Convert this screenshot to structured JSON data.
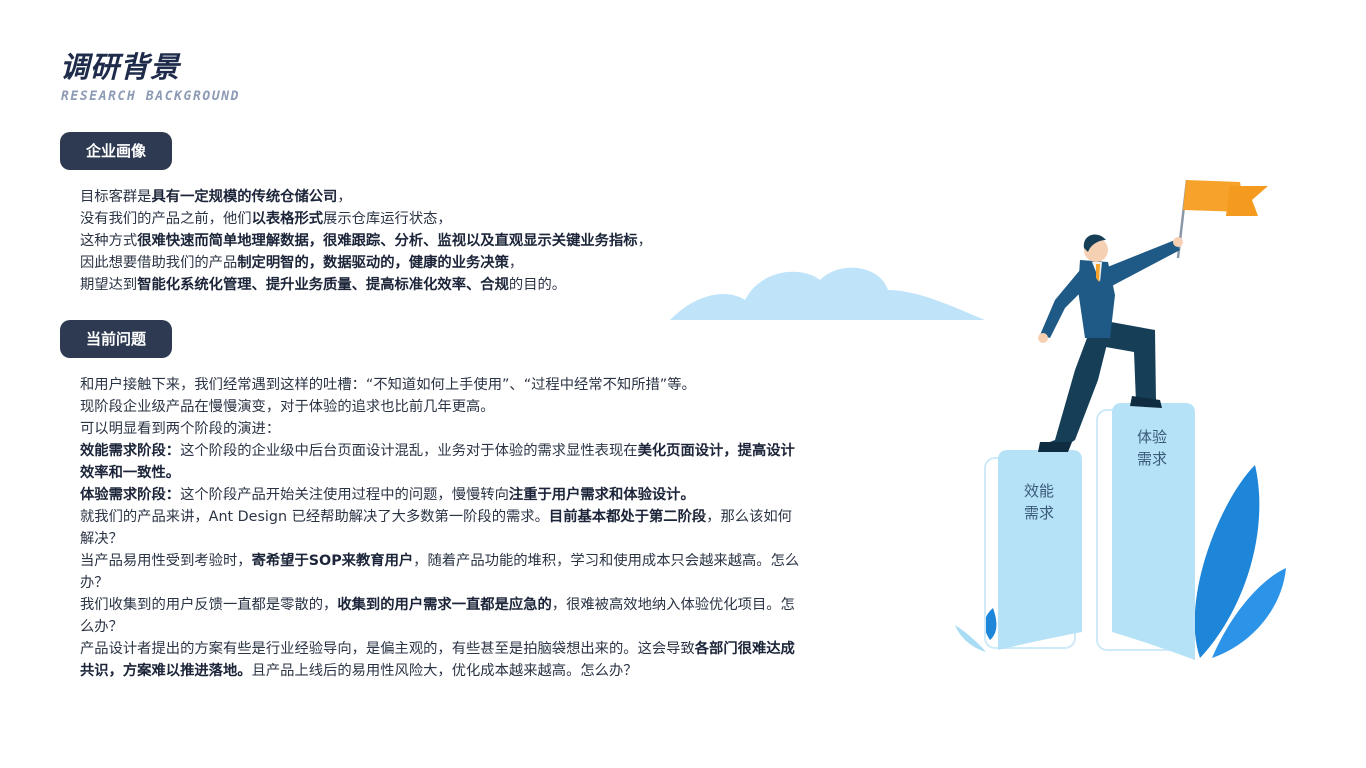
{
  "header": {
    "title": "调研背景",
    "subtitle": "RESEARCH BACKGROUND"
  },
  "section1": {
    "label": "企业画像",
    "lines": [
      [
        {
          "t": "目标客群是",
          "b": false
        },
        {
          "t": "具有一定规模的传统仓储公司",
          "b": true
        },
        {
          "t": "，",
          "b": false
        }
      ],
      [
        {
          "t": "没有我们的产品之前，他们",
          "b": false
        },
        {
          "t": "以表格形式",
          "b": true
        },
        {
          "t": "展示仓库运行状态，",
          "b": false
        }
      ],
      [
        {
          "t": "这种方式",
          "b": false
        },
        {
          "t": "很难快速而简单地理解数据，很难跟踪、分析、监视以及直观显示关键业务指标",
          "b": true
        },
        {
          "t": "，",
          "b": false
        }
      ],
      [
        {
          "t": "因此想要借助我们的产品",
          "b": false
        },
        {
          "t": "制定明智的，数据驱动的，健康的业务决策",
          "b": true
        },
        {
          "t": "，",
          "b": false
        }
      ],
      [
        {
          "t": "期望达到",
          "b": false
        },
        {
          "t": "智能化系统化管理、提升业务质量、提高标准化效率、合规",
          "b": true
        },
        {
          "t": "的目的。",
          "b": false
        }
      ]
    ]
  },
  "section2": {
    "label": "当前问题",
    "paragraphs": [
      [
        {
          "t": "和用户接触下来，我们经常遇到这样的吐槽：“不知道如何上手使用”、“过程中经常不知所措”等。",
          "b": false
        }
      ],
      [
        {
          "t": "现阶段企业级产品在慢慢演变，对于体验的追求也比前几年更高。",
          "b": false
        }
      ],
      [
        {
          "t": "可以明显看到两个阶段的演进：",
          "b": false
        }
      ],
      [
        {
          "t": "效能需求阶段：",
          "b": true
        },
        {
          "t": "这个阶段的企业级中后台页面设计混乱，业务对于体验的需求显性表现在",
          "b": false
        },
        {
          "t": "美化页面设计，提高设计效率和一致性。",
          "b": true
        }
      ],
      [
        {
          "t": "体验需求阶段：",
          "b": true
        },
        {
          "t": "这个阶段产品开始关注使用过程中的问题，慢慢转向",
          "b": false
        },
        {
          "t": "注重于用户需求和体验设计。",
          "b": true
        }
      ],
      [
        {
          "t": "就我们的产品来讲，Ant Design 已经帮助解决了大多数第一阶段的需求。",
          "b": false
        },
        {
          "t": "目前基本都处于第二阶段",
          "b": true
        },
        {
          "t": "，那么该如何解决？",
          "b": false
        }
      ],
      [
        {
          "t": "当产品易用性受到考验时，",
          "b": false
        },
        {
          "t": "寄希望于SOP来教育用户",
          "b": true
        },
        {
          "t": "，随着产品功能的堆积，学习和使用成本只会越来越高。怎么办？",
          "b": false
        }
      ],
      [
        {
          "t": "我们收集到的用户反馈一直都是零散的，",
          "b": false
        },
        {
          "t": "收集到的用户需求一直都是应急的",
          "b": true
        },
        {
          "t": "，很难被高效地纳入体验优化项目。怎么办？",
          "b": false
        }
      ],
      [
        {
          "t": "产品设计者提出的方案有些是行业经验导向，是偏主观的，有些甚至是拍脑袋想出来的。这会导致",
          "b": false
        },
        {
          "t": "各部门很难达成共识，方案难以推进落地。",
          "b": true
        },
        {
          "t": "且产品上线后的易用性风险大，优化成本越来越高。怎么办？",
          "b": false
        }
      ]
    ]
  },
  "illustration": {
    "pillar_left": [
      "效能",
      "需求"
    ],
    "pillar_right": [
      "体验",
      "需求"
    ],
    "colors": {
      "flag": "#f7a22b",
      "suit": "#1f5a86",
      "pants": "#163e57",
      "pillar": "#b6e2f7",
      "cloud": "#bfe4f9",
      "leaf": "#1e86d9"
    }
  }
}
